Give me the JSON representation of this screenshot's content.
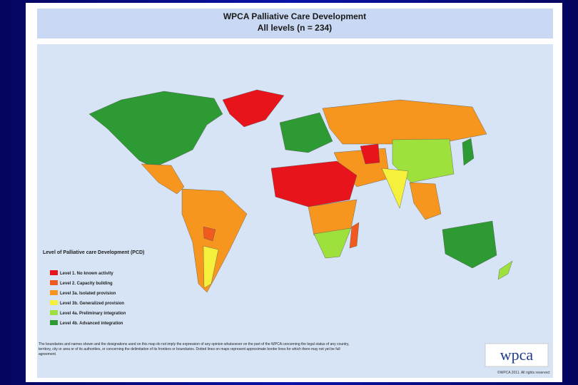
{
  "header": {
    "title": "WPCA Palliative Care Development",
    "subtitle": "All levels (n = 234)"
  },
  "legend": {
    "title": "Level of Palliative care Development (PCD)",
    "items": [
      {
        "label": "Level 1.  No known activity",
        "color": "#e8141b"
      },
      {
        "label": "Level 2.  Capacity building",
        "color": "#f05a1e"
      },
      {
        "label": "Level 3a.  Isolated provision",
        "color": "#f7961e"
      },
      {
        "label": "Level 3b.  Generalized provision",
        "color": "#f5f03c"
      },
      {
        "label": "Level 4a.  Preliminary integration",
        "color": "#9ee03c"
      },
      {
        "label": "Level 4b.  Advanced integration",
        "color": "#2e9a34"
      }
    ]
  },
  "footer": {
    "disclaimer": "The boundaries and names shown and the designations used on this map do not imply the expression of any opinion whatsoever on the part of the WPCA concerning the legal status of any country, territory, city or area or of its authorities, or concerning the delimitation of its frontiers or boundaries. Dotted lines on maps represent approximate border lines for which there may not yet be full agreement.",
    "logo": "wpca",
    "copyright": "©WPCA 2011. All rights reserved"
  }
}
